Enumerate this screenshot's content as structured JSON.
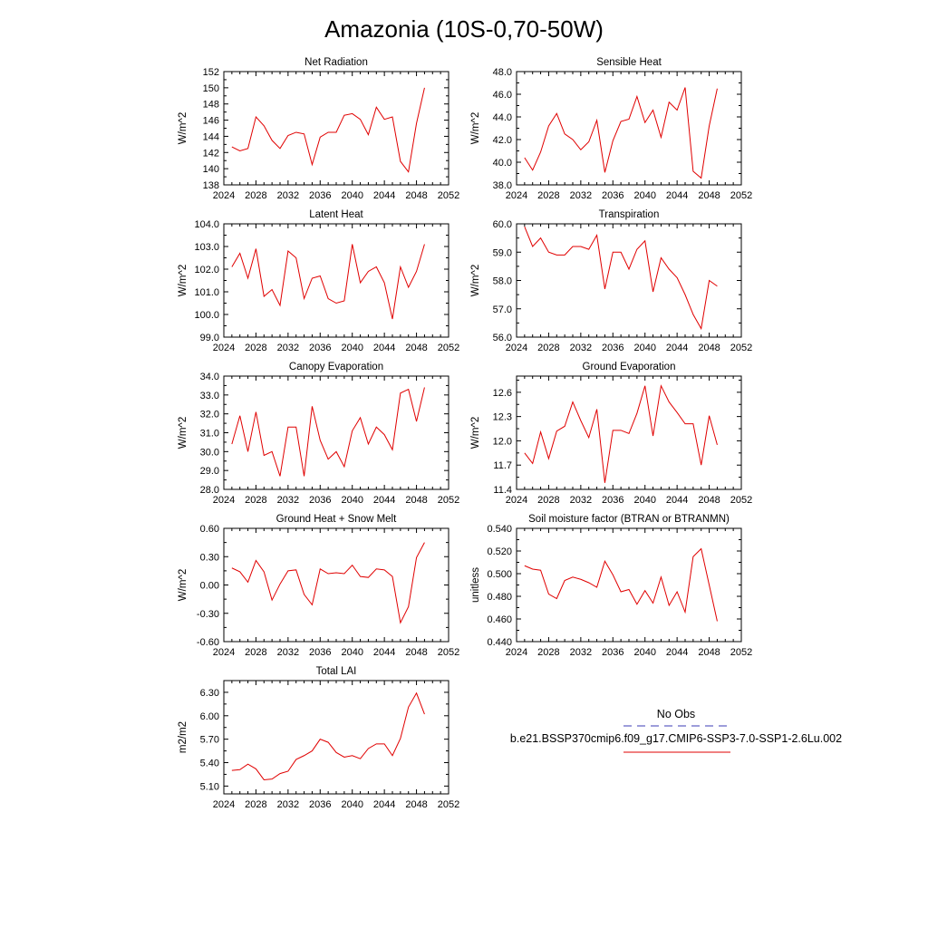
{
  "title": "Amazonia (10S-0,70-50W)",
  "legend": {
    "entries": [
      {
        "label": "No Obs",
        "color": "#3b3bb5",
        "style": "dashed"
      },
      {
        "label": "b.e21.BSSP370cmip6.f09_g17.CMIP6-SSP3-7.0-SSP1-2.6Lu.002",
        "color": "#e00000",
        "style": "solid"
      }
    ]
  },
  "chart_data": [
    {
      "type": "line",
      "title": "Net Radiation",
      "ylabel": "W/m^2",
      "xlim": [
        2024,
        2052
      ],
      "xticks": [
        2024,
        2028,
        2032,
        2036,
        2040,
        2044,
        2048,
        2052
      ],
      "ylim": [
        138,
        152
      ],
      "yticks": [
        "138",
        "140",
        "142",
        "144",
        "146",
        "148",
        "150",
        "152"
      ],
      "series": [
        {
          "color": "#e00000",
          "x": [
            2025,
            2026,
            2027,
            2028,
            2029,
            2030,
            2031,
            2032,
            2033,
            2034,
            2035,
            2036,
            2037,
            2038,
            2039,
            2040,
            2041,
            2042,
            2043,
            2044,
            2045,
            2046,
            2047,
            2048,
            2049
          ],
          "y": [
            142.7,
            142.2,
            142.5,
            146.4,
            145.3,
            143.5,
            142.5,
            144.1,
            144.5,
            144.3,
            140.5,
            143.9,
            144.5,
            144.5,
            146.6,
            146.8,
            146.1,
            144.2,
            147.6,
            146.1,
            146.4,
            140.9,
            139.6,
            145.6,
            150.0
          ]
        }
      ]
    },
    {
      "type": "line",
      "title": "Sensible Heat",
      "ylabel": "W/m^2",
      "xlim": [
        2024,
        2052
      ],
      "xticks": [
        2024,
        2028,
        2032,
        2036,
        2040,
        2044,
        2048,
        2052
      ],
      "ylim": [
        38,
        48
      ],
      "yticks": [
        "38.0",
        "40.0",
        "42.0",
        "44.0",
        "46.0",
        "48.0"
      ],
      "series": [
        {
          "color": "#e00000",
          "x": [
            2025,
            2026,
            2027,
            2028,
            2029,
            2030,
            2031,
            2032,
            2033,
            2034,
            2035,
            2036,
            2037,
            2038,
            2039,
            2040,
            2041,
            2042,
            2043,
            2044,
            2045,
            2046,
            2047,
            2048,
            2049
          ],
          "y": [
            40.4,
            39.3,
            40.9,
            43.2,
            44.3,
            42.5,
            42.0,
            41.1,
            41.8,
            43.7,
            39.1,
            41.9,
            43.6,
            43.8,
            45.8,
            43.5,
            44.6,
            42.2,
            45.3,
            44.6,
            46.6,
            39.2,
            38.6,
            43.2,
            46.5
          ]
        }
      ]
    },
    {
      "type": "line",
      "title": "Latent Heat",
      "ylabel": "W/m^2",
      "xlim": [
        2024,
        2052
      ],
      "xticks": [
        2024,
        2028,
        2032,
        2036,
        2040,
        2044,
        2048,
        2052
      ],
      "ylim": [
        99,
        104
      ],
      "yticks": [
        "99.0",
        "100.0",
        "101.0",
        "102.0",
        "103.0",
        "104.0"
      ],
      "series": [
        {
          "color": "#e00000",
          "x": [
            2025,
            2026,
            2027,
            2028,
            2029,
            2030,
            2031,
            2032,
            2033,
            2034,
            2035,
            2036,
            2037,
            2038,
            2039,
            2040,
            2041,
            2042,
            2043,
            2044,
            2045,
            2046,
            2047,
            2048,
            2049
          ],
          "y": [
            102.1,
            102.7,
            101.6,
            102.9,
            100.8,
            101.1,
            100.4,
            102.8,
            102.5,
            100.7,
            101.6,
            101.7,
            100.7,
            100.5,
            100.6,
            103.1,
            101.4,
            101.9,
            102.1,
            101.4,
            99.8,
            102.1,
            101.2,
            101.9,
            103.1
          ]
        }
      ]
    },
    {
      "type": "line",
      "title": "Transpiration",
      "ylabel": "W/m^2",
      "xlim": [
        2024,
        2052
      ],
      "xticks": [
        2024,
        2028,
        2032,
        2036,
        2040,
        2044,
        2048,
        2052
      ],
      "ylim": [
        56,
        60
      ],
      "yticks": [
        "56.0",
        "57.0",
        "58.0",
        "59.0",
        "60.0"
      ],
      "series": [
        {
          "color": "#e00000",
          "x": [
            2025,
            2026,
            2027,
            2028,
            2029,
            2030,
            2031,
            2032,
            2033,
            2034,
            2035,
            2036,
            2037,
            2038,
            2039,
            2040,
            2041,
            2042,
            2043,
            2044,
            2045,
            2046,
            2047,
            2048,
            2049
          ],
          "y": [
            59.9,
            59.2,
            59.5,
            59.0,
            58.9,
            58.9,
            59.2,
            59.2,
            59.1,
            59.6,
            57.7,
            59.0,
            59.0,
            58.4,
            59.1,
            59.4,
            57.6,
            58.8,
            58.4,
            58.1,
            57.5,
            56.8,
            56.3,
            58.0,
            57.8
          ]
        }
      ]
    },
    {
      "type": "line",
      "title": "Canopy Evaporation",
      "ylabel": "W/m^2",
      "xlim": [
        2024,
        2052
      ],
      "xticks": [
        2024,
        2028,
        2032,
        2036,
        2040,
        2044,
        2048,
        2052
      ],
      "ylim": [
        28,
        34
      ],
      "yticks": [
        "28.0",
        "29.0",
        "30.0",
        "31.0",
        "32.0",
        "33.0",
        "34.0"
      ],
      "series": [
        {
          "color": "#e00000",
          "x": [
            2025,
            2026,
            2027,
            2028,
            2029,
            2030,
            2031,
            2032,
            2033,
            2034,
            2035,
            2036,
            2037,
            2038,
            2039,
            2040,
            2041,
            2042,
            2043,
            2044,
            2045,
            2046,
            2047,
            2048,
            2049
          ],
          "y": [
            30.4,
            31.9,
            30.0,
            32.1,
            29.8,
            30.0,
            28.7,
            31.3,
            31.3,
            28.7,
            32.4,
            30.6,
            29.6,
            30.0,
            29.2,
            31.1,
            31.8,
            30.4,
            31.3,
            30.9,
            30.1,
            33.1,
            33.3,
            31.6,
            33.4
          ]
        }
      ]
    },
    {
      "type": "line",
      "title": "Ground Evaporation",
      "ylabel": "W/m^2",
      "xlim": [
        2024,
        2052
      ],
      "xticks": [
        2024,
        2028,
        2032,
        2036,
        2040,
        2044,
        2048,
        2052
      ],
      "ylim": [
        11.4,
        12.8
      ],
      "yticks": [
        "11.4",
        "11.7",
        "12.0",
        "12.3",
        "12.6"
      ],
      "series": [
        {
          "color": "#e00000",
          "x": [
            2025,
            2026,
            2027,
            2028,
            2029,
            2030,
            2031,
            2032,
            2033,
            2034,
            2035,
            2036,
            2037,
            2038,
            2039,
            2040,
            2041,
            2042,
            2043,
            2044,
            2045,
            2046,
            2047,
            2048,
            2049
          ],
          "y": [
            11.85,
            11.72,
            12.11,
            11.78,
            12.12,
            12.18,
            12.48,
            12.25,
            12.04,
            12.39,
            11.48,
            12.13,
            12.13,
            12.09,
            12.34,
            12.68,
            12.06,
            12.68,
            12.48,
            12.35,
            12.21,
            12.21,
            11.7,
            12.31,
            11.95
          ]
        }
      ]
    },
    {
      "type": "line",
      "title": "Ground Heat + Snow Melt",
      "ylabel": "W/m^2",
      "xlim": [
        2024,
        2052
      ],
      "xticks": [
        2024,
        2028,
        2032,
        2036,
        2040,
        2044,
        2048,
        2052
      ],
      "ylim": [
        -0.6,
        0.6
      ],
      "yticks": [
        "-0.60",
        "-0.30",
        "0.00",
        "0.30",
        "0.60"
      ],
      "series": [
        {
          "color": "#e00000",
          "x": [
            2025,
            2026,
            2027,
            2028,
            2029,
            2030,
            2031,
            2032,
            2033,
            2034,
            2035,
            2036,
            2037,
            2038,
            2039,
            2040,
            2041,
            2042,
            2043,
            2044,
            2045,
            2046,
            2047,
            2048,
            2049
          ],
          "y": [
            0.18,
            0.14,
            0.03,
            0.26,
            0.14,
            -0.16,
            0.01,
            0.15,
            0.16,
            -0.1,
            -0.21,
            0.17,
            0.12,
            0.13,
            0.12,
            0.21,
            0.09,
            0.08,
            0.17,
            0.16,
            0.09,
            -0.4,
            -0.23,
            0.29,
            0.45
          ]
        }
      ]
    },
    {
      "type": "line",
      "title": "Soil moisture factor (BTRAN or BTRANMN)",
      "ylabel": "unitless",
      "xlim": [
        2024,
        2052
      ],
      "xticks": [
        2024,
        2028,
        2032,
        2036,
        2040,
        2044,
        2048,
        2052
      ],
      "ylim": [
        0.44,
        0.54
      ],
      "yticks": [
        "0.440",
        "0.460",
        "0.480",
        "0.500",
        "0.520",
        "0.540"
      ],
      "series": [
        {
          "color": "#e00000",
          "x": [
            2025,
            2026,
            2027,
            2028,
            2029,
            2030,
            2031,
            2032,
            2033,
            2034,
            2035,
            2036,
            2037,
            2038,
            2039,
            2040,
            2041,
            2042,
            2043,
            2044,
            2045,
            2046,
            2047,
            2048,
            2049
          ],
          "y": [
            0.507,
            0.504,
            0.503,
            0.482,
            0.478,
            0.494,
            0.497,
            0.495,
            0.492,
            0.488,
            0.511,
            0.499,
            0.484,
            0.486,
            0.473,
            0.485,
            0.474,
            0.497,
            0.472,
            0.484,
            0.466,
            0.515,
            0.522,
            0.49,
            0.458
          ]
        }
      ]
    },
    {
      "type": "line",
      "title": "Total LAI",
      "ylabel": "m2/m2",
      "xlim": [
        2024,
        2052
      ],
      "xticks": [
        2024,
        2028,
        2032,
        2036,
        2040,
        2044,
        2048,
        2052
      ],
      "ylim": [
        5.0,
        6.45
      ],
      "yticks": [
        "5.10",
        "5.40",
        "5.70",
        "6.00",
        "6.30"
      ],
      "series": [
        {
          "color": "#e00000",
          "x": [
            2025,
            2026,
            2027,
            2028,
            2029,
            2030,
            2031,
            2032,
            2033,
            2034,
            2035,
            2036,
            2037,
            2038,
            2039,
            2040,
            2041,
            2042,
            2043,
            2044,
            2045,
            2046,
            2047,
            2048,
            2049
          ],
          "y": [
            5.3,
            5.31,
            5.38,
            5.32,
            5.18,
            5.19,
            5.26,
            5.29,
            5.44,
            5.49,
            5.55,
            5.7,
            5.66,
            5.53,
            5.47,
            5.49,
            5.45,
            5.58,
            5.64,
            5.64,
            5.49,
            5.71,
            6.11,
            6.29,
            6.02
          ]
        }
      ]
    }
  ]
}
